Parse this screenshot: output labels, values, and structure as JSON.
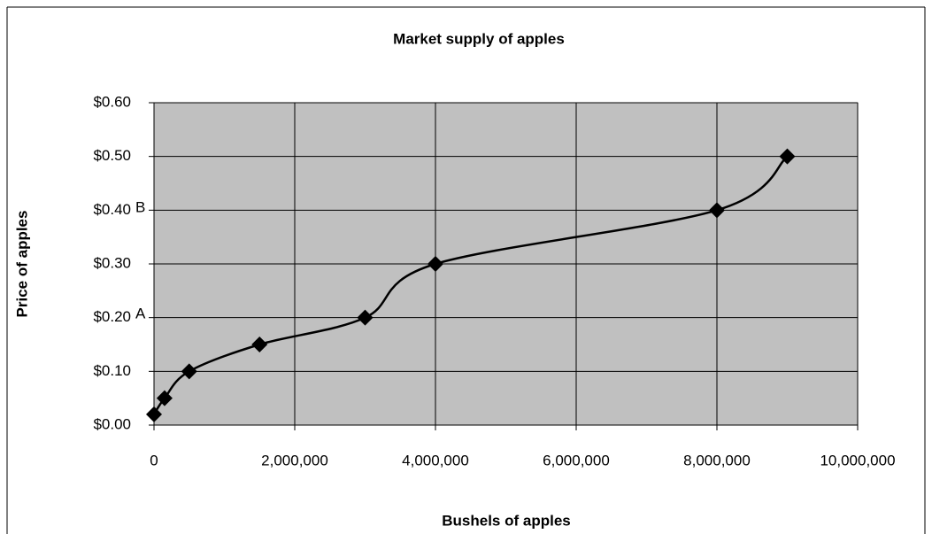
{
  "chart_data": {
    "type": "scatter",
    "title": "Market supply of apples",
    "x_label": "Bushels of apples",
    "y_label": "Price of apples",
    "x": [
      0,
      150000,
      500000,
      1500000,
      3000000,
      4000000,
      8000000,
      9000000
    ],
    "series": [
      {
        "color": "#000000",
        "values": [
          0.02,
          0.05,
          0.1,
          0.15,
          0.2,
          0.3,
          0.4,
          0.5
        ]
      }
    ],
    "xlim": [
      0,
      10000000
    ],
    "xticks": [
      0,
      {
        "value": 2000000,
        "label": "2,000,000"
      },
      {
        "value": 4000000,
        "label": "4,000,000"
      },
      {
        "value": 6000000,
        "label": "6,000,000"
      },
      {
        "value": 8000000,
        "label": "8,000,000"
      },
      {
        "value": 10000000,
        "label": "10,000,000"
      }
    ],
    "ylim": [
      0,
      0.6
    ],
    "yticks": [
      {
        "value": 0,
        "label": "$0.00"
      },
      {
        "value": 0.1,
        "label": "$0.10"
      },
      {
        "value": 0.2,
        "label": "$0.20"
      },
      {
        "value": 0.3,
        "label": "$0.30"
      },
      {
        "value": 0.4,
        "label": "$0.40"
      },
      {
        "value": 0.5,
        "label": "$0.50"
      },
      {
        "value": 0.6,
        "label": "$0.60"
      }
    ],
    "annotations": [
      "A",
      "B"
    ],
    "grid": true,
    "plot_background": "#c0c0c0"
  }
}
